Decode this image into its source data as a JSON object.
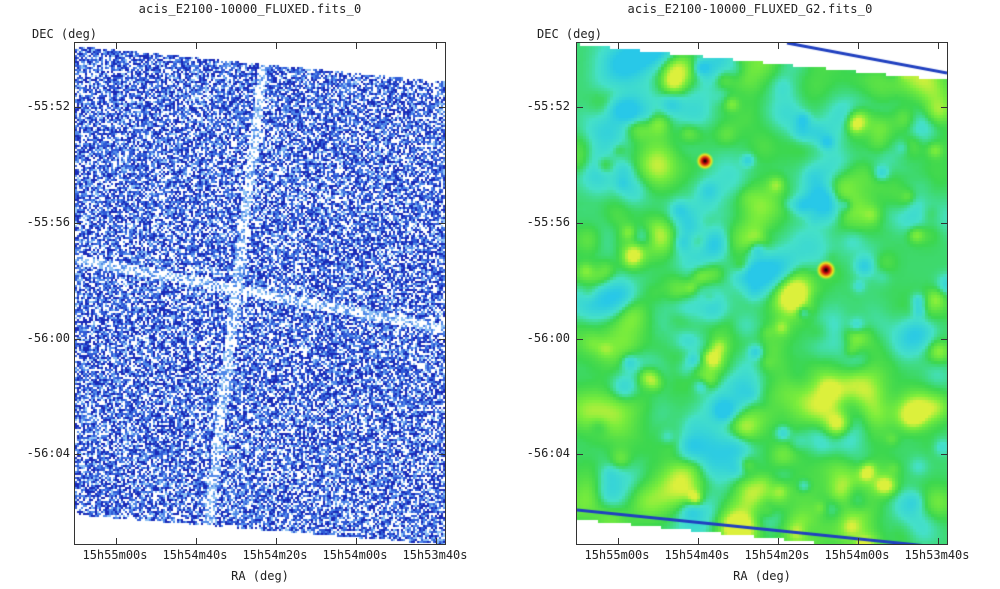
{
  "left_plot": {
    "title": "acis_E2100-10000_FLUXED.fits_0",
    "y_axis_label": "DEC (deg)",
    "x_axis_label": "RA (deg)",
    "y_ticks": [
      "-55:52",
      "-55:56",
      "-56:00",
      "-56:04"
    ],
    "x_ticks": [
      "15h55m00s",
      "15h54m40s",
      "15h54m20s",
      "15h54m00s",
      "15h53m40s"
    ]
  },
  "right_plot": {
    "title": "acis_E2100-10000_FLUXED_G2.fits_0",
    "y_axis_label": "DEC (deg)",
    "x_axis_label": "RA (deg)",
    "y_ticks": [
      "-55:52",
      "-55:56",
      "-56:00",
      "-56:04"
    ],
    "x_ticks": [
      "15h55m00s",
      "15h54m40s",
      "15h54m20s",
      "15h54m00s",
      "15h53m40s"
    ]
  },
  "colors": {
    "left_palette": [
      "#1a2bb8",
      "#2f5ad6",
      "#4f87e8",
      "#8fc2f4",
      "#ffffff"
    ],
    "right_palette": [
      "#25c8e6",
      "#4fe0c0",
      "#3ed84a",
      "#7ff03a",
      "#d8f23a"
    ],
    "source_core": "#d01010",
    "edge_band": "#2040c0"
  }
}
